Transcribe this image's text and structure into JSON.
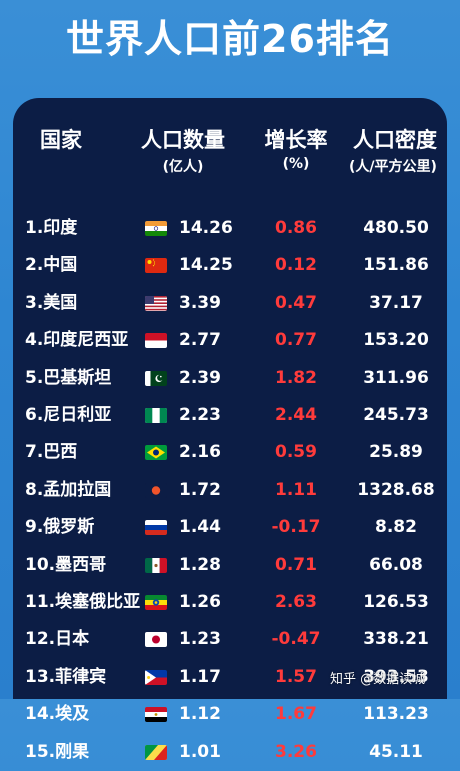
{
  "title": "世界人口前26排名",
  "headers": {
    "country": "国家",
    "population": "人口数量",
    "population_unit": "(亿人)",
    "growth": "增长率",
    "growth_unit": "(%)",
    "density": "人口密度",
    "density_unit": "(人/平方公里)"
  },
  "rows": [
    {
      "name": "1.印度",
      "flag": "india-flag",
      "population": "14.26",
      "growth": "0.86",
      "density": "480.50"
    },
    {
      "name": "2.中国",
      "flag": "china-flag",
      "population": "14.25",
      "growth": "0.12",
      "density": "151.86"
    },
    {
      "name": "3.美国",
      "flag": "usa-flag",
      "population": "3.39",
      "growth": "0.47",
      "density": "37.17"
    },
    {
      "name": "4.印度尼西亚",
      "flag": "indonesia-flag",
      "population": "2.77",
      "growth": "0.77",
      "density": "153.20"
    },
    {
      "name": "5.巴基斯坦",
      "flag": "pakistan-flag",
      "population": "2.39",
      "growth": "1.82",
      "density": "311.96"
    },
    {
      "name": "6.尼日利亚",
      "flag": "nigeria-flag",
      "population": "2.23",
      "growth": "2.44",
      "density": "245.73"
    },
    {
      "name": "7.巴西",
      "flag": "brazil-flag",
      "population": "2.16",
      "growth": "0.59",
      "density": "25.89"
    },
    {
      "name": "8.孟加拉国",
      "flag": "bangladesh-flag",
      "population": "1.72",
      "growth": "1.11",
      "density": "1328.68"
    },
    {
      "name": "9.俄罗斯",
      "flag": "russia-flag",
      "population": "1.44",
      "growth": "-0.17",
      "density": "8.82"
    },
    {
      "name": "10.墨西哥",
      "flag": "mexico-flag",
      "population": "1.28",
      "growth": "0.71",
      "density": "66.08"
    },
    {
      "name": "11.埃塞俄比亚",
      "flag": "ethiopia-flag",
      "population": "1.26",
      "growth": "2.63",
      "density": "126.53"
    },
    {
      "name": "12.日本",
      "flag": "japan-flag",
      "population": "1.23",
      "growth": "-0.47",
      "density": "338.21"
    },
    {
      "name": "13.菲律宾",
      "flag": "philippines-flag",
      "population": "1.17",
      "growth": "1.57",
      "density": "393.53"
    },
    {
      "name": "14.埃及",
      "flag": "egypt-flag",
      "population": "1.12",
      "growth": "1.67",
      "density": "113.23"
    },
    {
      "name": "15.刚果",
      "flag": "congo-flag",
      "population": "1.01",
      "growth": "3.26",
      "density": "45.11"
    }
  ],
  "watermark": "知乎 @数据读城",
  "colors": {
    "background": "#2e86d2",
    "panel": "#0c1d45",
    "growth_text": "#ff3b3b",
    "text": "#ffffff"
  }
}
